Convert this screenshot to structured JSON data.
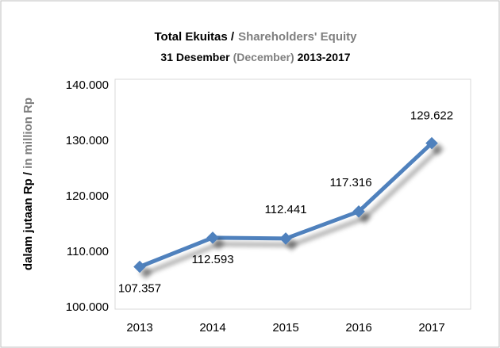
{
  "chart_data": {
    "type": "line",
    "title": [
      "Total Ekuitas /",
      "Shareholders' Equity"
    ],
    "subtitle": [
      "31 Desember",
      "(December)",
      "2013-2017"
    ],
    "y_label": [
      "dalam jutaan Rp /",
      "in million Rp"
    ],
    "categories": [
      "2013",
      "2014",
      "2015",
      "2016",
      "2017"
    ],
    "series": [
      {
        "name": "Total Ekuitas",
        "color": "#4f81bd",
        "values": [
          107357,
          112593,
          112441,
          117316,
          129622
        ],
        "value_labels": [
          "107.357",
          "112.593",
          "112.441",
          "117.316",
          "129.622"
        ]
      }
    ],
    "ylim": [
      100000,
      140000
    ],
    "yticks": [
      {
        "value": 100000,
        "label": "100.000"
      },
      {
        "value": 110000,
        "label": "110.000"
      },
      {
        "value": 120000,
        "label": "120.000"
      },
      {
        "value": 130000,
        "label": "130.000"
      },
      {
        "value": 140000,
        "label": "140.000"
      }
    ],
    "grid": false
  }
}
